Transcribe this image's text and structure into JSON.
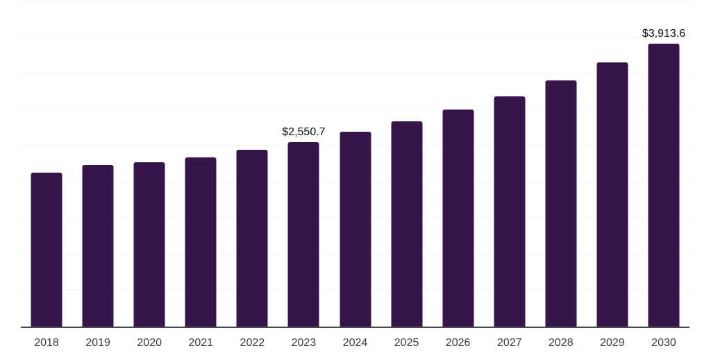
{
  "chart_data": {
    "type": "bar",
    "title": "",
    "xlabel": "",
    "ylabel": "",
    "categories": [
      "2018",
      "2019",
      "2020",
      "2021",
      "2022",
      "2023",
      "2024",
      "2025",
      "2026",
      "2027",
      "2028",
      "2029",
      "2030"
    ],
    "values": [
      2135,
      2235,
      2270,
      2340,
      2445,
      2550.7,
      2695,
      2840,
      3000,
      3190,
      3410,
      3660,
      3913.6
    ],
    "data_labels": [
      "",
      "",
      "",
      "",
      "",
      "$2,550.7",
      "",
      "",
      "",
      "",
      "",
      "",
      "$3,913.6"
    ],
    "ylim": [
      0,
      4500
    ],
    "gridline_interval": 500,
    "grid": "horizontal gridlines only, no y-axis tick labels",
    "legend": "none",
    "colors": {
      "bar": "#35154A",
      "axis_line": "#4a4a4a",
      "gridline": "#f2f2f2",
      "data_label": "#0b0b0b",
      "tick_label": "#3c3c3c",
      "background": "#ffffff"
    }
  }
}
